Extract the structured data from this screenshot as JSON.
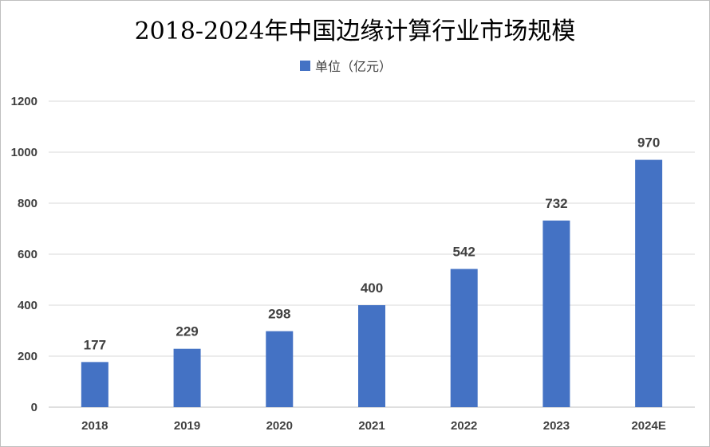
{
  "chart_data": {
    "type": "bar",
    "title": "2018-2024年中国边缘计算行业市场规模",
    "xlabel": "",
    "ylabel": "",
    "categories": [
      "2018",
      "2019",
      "2020",
      "2021",
      "2022",
      "2023",
      "2024E"
    ],
    "series": [
      {
        "name": "单位（亿元）",
        "values": [
          177,
          229,
          298,
          400,
          542,
          732,
          970
        ],
        "color": "#4472C4"
      }
    ],
    "ylim": [
      0,
      1200
    ],
    "yticks": [
      0,
      200,
      400,
      600,
      800,
      1000,
      1200
    ],
    "grid": true,
    "legend": "top-center",
    "data_labels": true
  }
}
